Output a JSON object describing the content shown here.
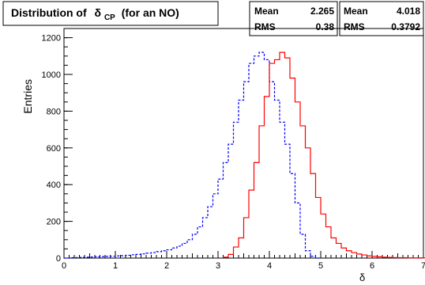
{
  "chart_data": {
    "type": "histogram",
    "title": {
      "prefix": "Distribution of",
      "symbol": "δ",
      "subscript": "CP",
      "suffix": "(for an NO)"
    },
    "xlabel_symbol": "δ",
    "ylabel": "Entries",
    "xlim": [
      0,
      7
    ],
    "ylim": [
      0,
      1250
    ],
    "x_ticks": [
      0,
      1,
      2,
      3,
      4,
      5,
      6,
      7
    ],
    "y_ticks": [
      0,
      200,
      400,
      600,
      800,
      1000,
      1200
    ],
    "bin_width": 0.1,
    "stats": [
      {
        "mean_label": "Mean",
        "mean_value": "2.265",
        "rms_label": "RMS",
        "rms_value": "0.38"
      },
      {
        "mean_label": "Mean",
        "mean_value": "4.018",
        "rms_label": "RMS",
        "rms_value": "0.3792"
      }
    ],
    "series": [
      {
        "style": "dashed",
        "color": "#0000ff",
        "x_start": 0.0,
        "values": [
          0,
          2,
          3,
          4,
          5,
          6,
          7,
          8,
          9,
          10,
          12,
          13,
          15,
          18,
          20,
          23,
          27,
          30,
          35,
          40,
          45,
          55,
          65,
          80,
          100,
          130,
          170,
          220,
          280,
          350,
          430,
          520,
          620,
          740,
          860,
          960,
          1060,
          1100,
          1120,
          1080,
          960,
          860,
          740,
          620,
          460,
          300,
          130,
          40,
          10,
          0
        ]
      },
      {
        "style": "solid",
        "color": "#ff0000",
        "x_start": 3.1,
        "values": [
          5,
          20,
          60,
          110,
          220,
          370,
          520,
          720,
          880,
          1060,
          1080,
          1120,
          1090,
          980,
          850,
          720,
          600,
          460,
          330,
          240,
          170,
          110,
          80,
          55,
          40,
          30,
          22,
          17,
          12,
          9,
          7,
          5,
          4,
          3,
          2,
          2,
          1,
          1,
          1,
          1
        ]
      }
    ]
  }
}
